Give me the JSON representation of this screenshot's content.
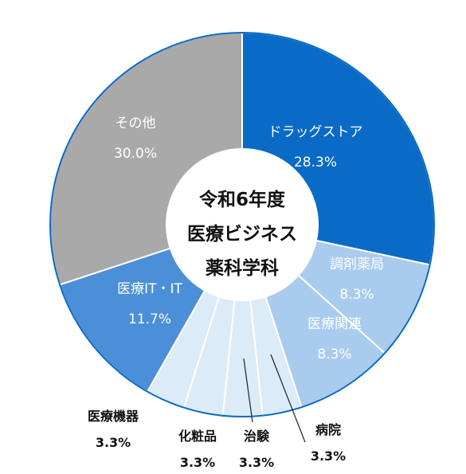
{
  "chart_data": {
    "type": "pie",
    "variant": "donut",
    "center_title": [
      "令和6年度",
      "医療ビジネス",
      "薬科学科"
    ],
    "unit": "%",
    "slices": [
      {
        "label": "ドラッグストア",
        "value": 28.3,
        "value_text": "28.3%",
        "color": "#0a6bc6",
        "label_style": "inside"
      },
      {
        "label": "調剤薬局",
        "value": 8.3,
        "value_text": "8.3%",
        "color": "#a9cbee",
        "label_style": "inside"
      },
      {
        "label": "医療関連",
        "value": 8.3,
        "value_text": "8.3%",
        "color": "#a9cbee",
        "label_style": "inside"
      },
      {
        "label": "病院",
        "value": 3.3,
        "value_text": "3.3%",
        "color": "#dcebf8",
        "label_style": "outside"
      },
      {
        "label": "治験",
        "value": 3.3,
        "value_text": "3.3%",
        "color": "#dcebf8",
        "label_style": "outside"
      },
      {
        "label": "化粧品",
        "value": 3.3,
        "value_text": "3.3%",
        "color": "#dcebf8",
        "label_style": "outside"
      },
      {
        "label": "医療機器",
        "value": 3.3,
        "value_text": "3.3%",
        "color": "#dcebf8",
        "label_style": "outside"
      },
      {
        "label": "医療IT・IT",
        "value": 11.7,
        "value_text": "11.7%",
        "color": "#4b8fd8",
        "label_style": "inside"
      },
      {
        "label": "その他",
        "value": 30.0,
        "value_text": "30.0%",
        "color": "#a9a9a9",
        "label_style": "inside"
      }
    ],
    "outline_color": "#0a6bc6",
    "start_angle": "12 o'clock",
    "direction": "clockwise"
  }
}
